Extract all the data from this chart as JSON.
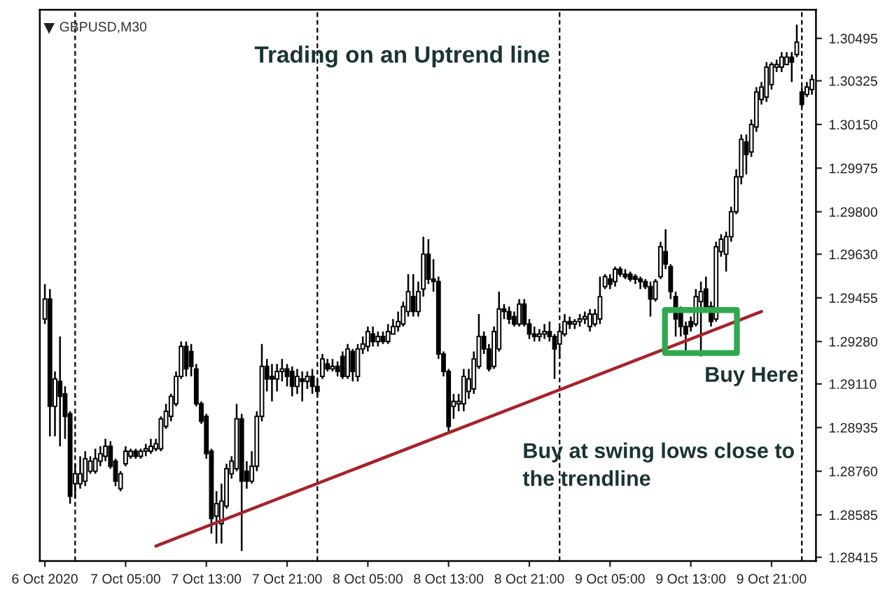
{
  "chart_data": {
    "type": "candlestick",
    "title": "Trading on an Uptrend line",
    "subtitle": "GBPUSD,M30",
    "x": [
      "2020-10-06T21:00",
      "2020-10-06T21:30",
      "2020-10-06T22:00",
      "2020-10-06T22:30",
      "2020-10-06T23:00",
      "2020-10-06T23:30",
      "2020-10-07T00:00",
      "2020-10-07T00:30",
      "2020-10-07T01:00",
      "2020-10-07T01:30",
      "2020-10-07T02:00",
      "2020-10-07T02:30",
      "2020-10-07T03:00",
      "2020-10-07T03:30",
      "2020-10-07T04:00",
      "2020-10-07T04:30",
      "2020-10-07T05:00",
      "2020-10-07T05:30",
      "2020-10-07T06:00",
      "2020-10-07T06:30",
      "2020-10-07T07:00",
      "2020-10-07T07:30",
      "2020-10-07T08:00",
      "2020-10-07T08:30",
      "2020-10-07T09:00",
      "2020-10-07T09:30",
      "2020-10-07T10:00",
      "2020-10-07T10:30",
      "2020-10-07T11:00",
      "2020-10-07T11:30",
      "2020-10-07T12:00",
      "2020-10-07T12:30",
      "2020-10-07T13:00",
      "2020-10-07T13:30",
      "2020-10-07T14:00",
      "2020-10-07T14:30",
      "2020-10-07T15:00",
      "2020-10-07T15:30",
      "2020-10-07T16:00",
      "2020-10-07T16:30",
      "2020-10-07T17:00",
      "2020-10-07T17:30",
      "2020-10-07T18:00",
      "2020-10-07T18:30",
      "2020-10-07T19:00",
      "2020-10-07T19:30",
      "2020-10-07T20:00",
      "2020-10-07T20:30",
      "2020-10-07T21:00",
      "2020-10-07T21:30",
      "2020-10-07T22:00",
      "2020-10-07T22:30",
      "2020-10-07T23:00",
      "2020-10-07T23:30",
      "2020-10-08T00:00",
      "2020-10-08T00:30",
      "2020-10-08T01:00",
      "2020-10-08T01:30",
      "2020-10-08T02:00",
      "2020-10-08T02:30",
      "2020-10-08T03:00",
      "2020-10-08T03:30",
      "2020-10-08T04:00",
      "2020-10-08T04:30",
      "2020-10-08T05:00",
      "2020-10-08T05:30",
      "2020-10-08T06:00",
      "2020-10-08T06:30",
      "2020-10-08T07:00",
      "2020-10-08T07:30",
      "2020-10-08T08:00",
      "2020-10-08T08:30",
      "2020-10-08T09:00",
      "2020-10-08T09:30",
      "2020-10-08T10:00",
      "2020-10-08T10:30",
      "2020-10-08T11:00",
      "2020-10-08T11:30",
      "2020-10-08T12:00",
      "2020-10-08T12:30",
      "2020-10-08T13:00",
      "2020-10-08T13:30",
      "2020-10-08T14:00",
      "2020-10-08T14:30",
      "2020-10-08T15:00",
      "2020-10-08T15:30",
      "2020-10-08T16:00",
      "2020-10-08T16:30",
      "2020-10-08T17:00",
      "2020-10-08T17:30",
      "2020-10-08T18:00",
      "2020-10-08T18:30",
      "2020-10-08T19:00",
      "2020-10-08T19:30",
      "2020-10-08T20:00",
      "2020-10-08T20:30",
      "2020-10-08T21:00",
      "2020-10-08T21:30",
      "2020-10-08T22:00",
      "2020-10-08T22:30",
      "2020-10-08T23:00",
      "2020-10-08T23:30",
      "2020-10-09T00:00",
      "2020-10-09T00:30",
      "2020-10-09T01:00",
      "2020-10-09T01:30",
      "2020-10-09T02:00",
      "2020-10-09T02:30",
      "2020-10-09T03:00",
      "2020-10-09T03:30",
      "2020-10-09T04:00",
      "2020-10-09T04:30",
      "2020-10-09T05:00",
      "2020-10-09T05:30",
      "2020-10-09T06:00",
      "2020-10-09T06:30",
      "2020-10-09T07:00",
      "2020-10-09T07:30",
      "2020-10-09T08:00",
      "2020-10-09T08:30",
      "2020-10-09T09:00",
      "2020-10-09T09:30",
      "2020-10-09T10:00",
      "2020-10-09T10:30",
      "2020-10-09T11:00",
      "2020-10-09T11:30",
      "2020-10-09T12:00",
      "2020-10-09T12:30",
      "2020-10-09T13:00",
      "2020-10-09T13:30",
      "2020-10-09T14:00",
      "2020-10-09T14:30",
      "2020-10-09T15:00",
      "2020-10-09T15:30",
      "2020-10-09T16:00",
      "2020-10-09T16:30",
      "2020-10-09T17:00",
      "2020-10-09T17:30",
      "2020-10-09T18:00",
      "2020-10-09T18:30",
      "2020-10-09T19:00",
      "2020-10-09T19:30",
      "2020-10-09T20:00",
      "2020-10-09T20:30",
      "2020-10-09T21:00",
      "2020-10-09T21:30",
      "2020-10-09T22:00",
      "2020-10-09T22:30",
      "2020-10-09T23:00",
      "2020-10-09T23:30",
      "2020-10-10T00:00",
      "2020-10-10T00:30",
      "2020-10-10T01:00"
    ],
    "ohlc": [
      [
        1.2937,
        1.2951,
        1.2935,
        1.2945
      ],
      [
        1.2945,
        1.2949,
        1.289,
        1.2902
      ],
      [
        1.2902,
        1.2916,
        1.289,
        1.2913
      ],
      [
        1.2912,
        1.293,
        1.2886,
        1.2906
      ],
      [
        1.2907,
        1.291,
        1.2889,
        1.2898
      ],
      [
        1.2899,
        1.29,
        1.2863,
        1.2866
      ],
      [
        1.2871,
        1.2879,
        1.2865,
        1.2875
      ],
      [
        1.2871,
        1.2882,
        1.2869,
        1.2875
      ],
      [
        1.2872,
        1.2884,
        1.287,
        1.2881
      ],
      [
        1.2876,
        1.2882,
        1.2875,
        1.288
      ],
      [
        1.2876,
        1.2885,
        1.2875,
        1.2881
      ],
      [
        1.288,
        1.2886,
        1.2878,
        1.2883
      ],
      [
        1.2882,
        1.2889,
        1.288,
        1.2886
      ],
      [
        1.2886,
        1.2888,
        1.2877,
        1.2878
      ],
      [
        1.288,
        1.2881,
        1.287,
        1.2872
      ],
      [
        1.2869,
        1.2876,
        1.2868,
        1.2875
      ],
      [
        1.2879,
        1.2886,
        1.2878,
        1.2884
      ],
      [
        1.2882,
        1.2885,
        1.2881,
        1.2884
      ],
      [
        1.2884,
        1.2885,
        1.2881,
        1.2882
      ],
      [
        1.2882,
        1.2885,
        1.2881,
        1.2884
      ],
      [
        1.2884,
        1.2887,
        1.2882,
        1.2885
      ],
      [
        1.2884,
        1.2889,
        1.2883,
        1.2886
      ],
      [
        1.2885,
        1.2889,
        1.2884,
        1.2887
      ],
      [
        1.2885,
        1.2898,
        1.2884,
        1.2897
      ],
      [
        1.2894,
        1.2903,
        1.2893,
        1.29
      ],
      [
        1.2898,
        1.2907,
        1.2896,
        1.2906
      ],
      [
        1.2903,
        1.2916,
        1.2902,
        1.2914
      ],
      [
        1.2914,
        1.2928,
        1.2913,
        1.2926
      ],
      [
        1.2926,
        1.2928,
        1.2914,
        1.2917
      ],
      [
        1.2924,
        1.2927,
        1.2914,
        1.2918
      ],
      [
        1.2917,
        1.2919,
        1.2902,
        1.2903
      ],
      [
        1.2903,
        1.2904,
        1.2895,
        1.2896
      ],
      [
        1.2898,
        1.2899,
        1.2881,
        1.2883
      ],
      [
        1.2884,
        1.2885,
        1.2851,
        1.2857
      ],
      [
        1.2858,
        1.2868,
        1.2847,
        1.2863
      ],
      [
        1.2855,
        1.2871,
        1.2847,
        1.2864
      ],
      [
        1.2862,
        1.2879,
        1.2861,
        1.2877
      ],
      [
        1.2875,
        1.2882,
        1.2873,
        1.288
      ],
      [
        1.2877,
        1.2903,
        1.2876,
        1.2897
      ],
      [
        1.2897,
        1.2899,
        1.2844,
        1.2872
      ],
      [
        1.2876,
        1.288,
        1.2869,
        1.2872
      ],
      [
        1.2872,
        1.2884,
        1.2871,
        1.2878
      ],
      [
        1.2878,
        1.29,
        1.2876,
        1.2898
      ],
      [
        1.2898,
        1.2927,
        1.2896,
        1.2918
      ],
      [
        1.2918,
        1.2921,
        1.2908,
        1.2913
      ],
      [
        1.2914,
        1.2919,
        1.2904,
        1.2913
      ],
      [
        1.2913,
        1.2919,
        1.2908,
        1.2916
      ],
      [
        1.2916,
        1.2921,
        1.2912,
        1.2917
      ],
      [
        1.2917,
        1.2919,
        1.291,
        1.2914
      ],
      [
        1.2916,
        1.2918,
        1.2906,
        1.291
      ],
      [
        1.291,
        1.2917,
        1.2907,
        1.2914
      ],
      [
        1.2913,
        1.2916,
        1.2904,
        1.2912
      ],
      [
        1.2912,
        1.2916,
        1.2909,
        1.2914
      ],
      [
        1.2914,
        1.2917,
        1.2907,
        1.291
      ],
      [
        1.291,
        1.2913,
        1.2906,
        1.2908
      ],
      [
        1.2914,
        1.2923,
        1.2913,
        1.2921
      ],
      [
        1.2919,
        1.2921,
        1.2916,
        1.2917
      ],
      [
        1.2917,
        1.2921,
        1.2916,
        1.2918
      ],
      [
        1.2918,
        1.292,
        1.2914,
        1.2916
      ],
      [
        1.2922,
        1.2924,
        1.2913,
        1.2914
      ],
      [
        1.2914,
        1.2927,
        1.2913,
        1.2925
      ],
      [
        1.2924,
        1.2925,
        1.2912,
        1.2916
      ],
      [
        1.2914,
        1.2927,
        1.2912,
        1.2925
      ],
      [
        1.2925,
        1.293,
        1.2923,
        1.2927
      ],
      [
        1.2926,
        1.2934,
        1.2924,
        1.2932
      ],
      [
        1.2931,
        1.2934,
        1.2926,
        1.2928
      ],
      [
        1.2928,
        1.2932,
        1.2926,
        1.293
      ],
      [
        1.293,
        1.2932,
        1.2927,
        1.2928
      ],
      [
        1.2928,
        1.2935,
        1.2927,
        1.2932
      ],
      [
        1.2931,
        1.2937,
        1.2931,
        1.2934
      ],
      [
        1.2934,
        1.294,
        1.2932,
        1.2936
      ],
      [
        1.2935,
        1.2944,
        1.2934,
        1.2942
      ],
      [
        1.294,
        1.2955,
        1.2938,
        1.2948
      ],
      [
        1.2946,
        1.2955,
        1.2938,
        1.294
      ],
      [
        1.294,
        1.2952,
        1.2938,
        1.2948
      ],
      [
        1.2949,
        1.297,
        1.2946,
        1.2963
      ],
      [
        1.2963,
        1.2969,
        1.2951,
        1.2953
      ],
      [
        1.2953,
        1.2961,
        1.2948,
        1.2952
      ],
      [
        1.2952,
        1.2954,
        1.2921,
        1.2923
      ],
      [
        1.2923,
        1.2924,
        1.2914,
        1.2916
      ],
      [
        1.2916,
        1.2917,
        1.2892,
        1.2894
      ],
      [
        1.2902,
        1.2907,
        1.2897,
        1.2904
      ],
      [
        1.2903,
        1.2907,
        1.29,
        1.2904
      ],
      [
        1.2903,
        1.2917,
        1.29,
        1.2914
      ],
      [
        1.2908,
        1.2917,
        1.2905,
        1.2913
      ],
      [
        1.2909,
        1.2924,
        1.2907,
        1.2921
      ],
      [
        1.2918,
        1.2939,
        1.2917,
        1.293
      ],
      [
        1.293,
        1.2932,
        1.2923,
        1.2925
      ],
      [
        1.2925,
        1.2927,
        1.2916,
        1.2917
      ],
      [
        1.2918,
        1.2934,
        1.2917,
        1.2932
      ],
      [
        1.2925,
        1.2948,
        1.2924,
        1.2941
      ],
      [
        1.2941,
        1.2943,
        1.2937,
        1.294
      ],
      [
        1.294,
        1.2942,
        1.2935,
        1.2937
      ],
      [
        1.2938,
        1.294,
        1.2934,
        1.2935
      ],
      [
        1.2935,
        1.2945,
        1.2934,
        1.2943
      ],
      [
        1.2943,
        1.2945,
        1.2934,
        1.2935
      ],
      [
        1.2935,
        1.2937,
        1.2929,
        1.2931
      ],
      [
        1.2931,
        1.2934,
        1.2928,
        1.293
      ],
      [
        1.293,
        1.2933,
        1.2928,
        1.2931
      ],
      [
        1.2931,
        1.2935,
        1.2929,
        1.2932
      ],
      [
        1.2932,
        1.2936,
        1.2928,
        1.293
      ],
      [
        1.293,
        1.2931,
        1.2913,
        1.2925
      ],
      [
        1.2927,
        1.2934,
        1.2921,
        1.2932
      ],
      [
        1.2931,
        1.2939,
        1.293,
        1.2936
      ],
      [
        1.2936,
        1.2938,
        1.2933,
        1.2935
      ],
      [
        1.2935,
        1.2937,
        1.2933,
        1.2936
      ],
      [
        1.2936,
        1.2939,
        1.2934,
        1.2937
      ],
      [
        1.2937,
        1.294,
        1.2935,
        1.2938
      ],
      [
        1.2934,
        1.2941,
        1.2932,
        1.2939
      ],
      [
        1.2935,
        1.2941,
        1.2934,
        1.2939
      ],
      [
        1.2937,
        1.2954,
        1.2935,
        1.2946
      ],
      [
        1.295,
        1.2955,
        1.2949,
        1.2954
      ],
      [
        1.2953,
        1.2955,
        1.2949,
        1.2951
      ],
      [
        1.2952,
        1.2958,
        1.295,
        1.2957
      ],
      [
        1.2957,
        1.2958,
        1.2954,
        1.2955
      ],
      [
        1.2955,
        1.2957,
        1.2953,
        1.2954
      ],
      [
        1.2955,
        1.2956,
        1.2952,
        1.2953
      ],
      [
        1.2954,
        1.2955,
        1.2951,
        1.2953
      ],
      [
        1.2953,
        1.2954,
        1.2949,
        1.2952
      ],
      [
        1.2952,
        1.2953,
        1.2949,
        1.295
      ],
      [
        1.295,
        1.2952,
        1.2938,
        1.2945
      ],
      [
        1.2945,
        1.2953,
        1.2944,
        1.2952
      ],
      [
        1.2954,
        1.2968,
        1.2953,
        1.2966
      ],
      [
        1.2964,
        1.2973,
        1.2957,
        1.2959
      ],
      [
        1.2958,
        1.2959,
        1.2945,
        1.2948
      ],
      [
        1.2946,
        1.2948,
        1.293,
        1.2937
      ],
      [
        1.294,
        1.2942,
        1.293,
        1.2934
      ],
      [
        1.2934,
        1.2936,
        1.2924,
        1.2931
      ],
      [
        1.2936,
        1.2938,
        1.2932,
        1.2934
      ],
      [
        1.2935,
        1.2949,
        1.2934,
        1.2946
      ],
      [
        1.2944,
        1.2952,
        1.2922,
        1.2948
      ],
      [
        1.2949,
        1.2954,
        1.294,
        1.2942
      ],
      [
        1.2942,
        1.2944,
        1.2934,
        1.2936
      ],
      [
        1.2937,
        1.2968,
        1.2936,
        1.2966
      ],
      [
        1.2964,
        1.2971,
        1.2962,
        1.2969
      ],
      [
        1.2963,
        1.2972,
        1.2956,
        1.297
      ],
      [
        1.297,
        1.2982,
        1.2968,
        1.298
      ],
      [
        1.298,
        1.2997,
        1.2979,
        1.2994
      ],
      [
        1.2994,
        1.3011,
        1.2991,
        1.3009
      ],
      [
        1.3008,
        1.3011,
        1.2995,
        1.3003
      ],
      [
        1.3004,
        1.3017,
        1.3002,
        1.3015
      ],
      [
        1.3014,
        1.303,
        1.3012,
        1.3028
      ],
      [
        1.3025,
        1.3032,
        1.3023,
        1.303
      ],
      [
        1.3026,
        1.304,
        1.3024,
        1.3038
      ],
      [
        1.3031,
        1.304,
        1.3029,
        1.3039
      ],
      [
        1.3038,
        1.3041,
        1.3036,
        1.3039
      ],
      [
        1.3038,
        1.3044,
        1.3036,
        1.3042
      ],
      [
        1.3039,
        1.3044,
        1.3039,
        1.3042
      ],
      [
        1.3042,
        1.3044,
        1.3032,
        1.304
      ],
      [
        1.3043,
        1.3055,
        1.3042,
        1.3048
      ],
      [
        1.3028,
        1.303,
        1.3022,
        1.3023
      ],
      [
        1.3027,
        1.3032,
        1.3026,
        1.303
      ],
      [
        1.3029,
        1.3035,
        1.3027,
        1.3033
      ]
    ],
    "series": [
      {
        "type": "line",
        "color": "#a5232d",
        "x": [
          "2020-10-07T08:00",
          "2020-10-09T20:00"
        ],
        "values": [
          1.2846,
          1.294
        ]
      }
    ],
    "xlim": [
      "2020-10-06T20:30",
      "2020-10-10T01:24"
    ],
    "xticks": [
      {
        "value": "2020-10-06T21:00",
        "label": "6 Oct 2020"
      },
      {
        "value": "2020-10-07T05:00",
        "label": "7 Oct 05:00"
      },
      {
        "value": "2020-10-07T13:00",
        "label": "7 Oct 13:00"
      },
      {
        "value": "2020-10-07T21:00",
        "label": "7 Oct 21:00"
      },
      {
        "value": "2020-10-08T05:00",
        "label": "8 Oct 05:00"
      },
      {
        "value": "2020-10-08T13:00",
        "label": "8 Oct 13:00"
      },
      {
        "value": "2020-10-08T21:00",
        "label": "8 Oct 21:00"
      },
      {
        "value": "2020-10-09T05:00",
        "label": "9 Oct 05:00"
      },
      {
        "value": "2020-10-09T13:00",
        "label": "9 Oct 13:00"
      },
      {
        "value": "2020-10-09T21:00",
        "label": "9 Oct 21:00"
      }
    ],
    "ylim": [
      1.284,
      1.3061
    ],
    "yticks": [
      {
        "value": 1.30495,
        "label": "1.30495"
      },
      {
        "value": 1.30325,
        "label": "1.30325"
      },
      {
        "value": 1.3015,
        "label": "1.30150"
      },
      {
        "value": 1.29975,
        "label": "1.29975"
      },
      {
        "value": 1.298,
        "label": "1.29800"
      },
      {
        "value": 1.2963,
        "label": "1.29630"
      },
      {
        "value": 1.29455,
        "label": "1.29455"
      },
      {
        "value": 1.2928,
        "label": "1.29280"
      },
      {
        "value": 1.2911,
        "label": "1.29110"
      },
      {
        "value": 1.28935,
        "label": "1.28935"
      },
      {
        "value": 1.2876,
        "label": "1.28760"
      },
      {
        "value": 1.28585,
        "label": "1.28585"
      },
      {
        "value": 1.28415,
        "label": "1.28415"
      }
    ],
    "ref_lines": [
      {
        "axis": "x",
        "value": "2020-10-07T00:00",
        "color": "#000000",
        "line_style": "dashed"
      },
      {
        "axis": "x",
        "value": "2020-10-08T00:00",
        "color": "#000000",
        "line_style": "dashed"
      },
      {
        "axis": "x",
        "value": "2020-10-09T00:00",
        "color": "#000000",
        "line_style": "dashed"
      },
      {
        "axis": "x",
        "value": "2020-10-10T00:00",
        "color": "#000000",
        "line_style": "dashed"
      }
    ],
    "annotations": [
      {
        "text": "Buy Here",
        "x": "2020-10-09T14:00",
        "y": 1.2932
      },
      "Buy at swing lows close to the trendline"
    ],
    "grid": false,
    "legend": false
  }
}
